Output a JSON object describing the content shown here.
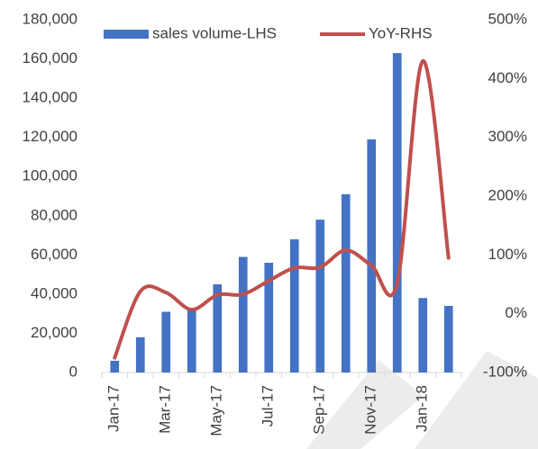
{
  "chart_data": {
    "type": "bar_line",
    "categories": [
      "Jan-17",
      null,
      "Mar-17",
      null,
      "May-17",
      null,
      "Jul-17",
      null,
      "Sep-17",
      null,
      "Nov-17",
      null,
      "Jan-18",
      null
    ],
    "series": [
      {
        "name": "sales volume-LHS",
        "type": "bar",
        "color": "#4472c4",
        "values": [
          6000,
          18000,
          31000,
          32000,
          45000,
          59000,
          56000,
          68000,
          78000,
          91000,
          119000,
          163000,
          38000,
          34000
        ]
      },
      {
        "name": "YoY-RHS",
        "type": "line",
        "axis": "y2",
        "color": "#c0504d",
        "values": [
          -75,
          38,
          36,
          7,
          32,
          33,
          56,
          78,
          79,
          108,
          82,
          52,
          430,
          95
        ]
      }
    ],
    "ylim": [
      0,
      180000
    ],
    "yticks": [
      0,
      {
        "value": 20000,
        "label": "20,000"
      },
      {
        "value": 40000,
        "label": "40,000"
      },
      {
        "value": 60000,
        "label": "60,000"
      },
      {
        "value": 80000,
        "label": "80,000"
      },
      {
        "value": 100000,
        "label": "100,000"
      },
      {
        "value": 120000,
        "label": "120,000"
      },
      {
        "value": 140000,
        "label": "140,000"
      },
      {
        "value": 160000,
        "label": "160,000"
      },
      {
        "value": 180000,
        "label": "180,000"
      }
    ],
    "y2lim": [
      -100,
      500
    ],
    "y2ticks": [
      {
        "value": -100,
        "label": "-100%"
      },
      {
        "value": 0,
        "label": "0%"
      },
      {
        "value": 100,
        "label": "100%"
      },
      {
        "value": 200,
        "label": "200%"
      },
      {
        "value": 300,
        "label": "300%"
      },
      {
        "value": 400,
        "label": "400%"
      },
      {
        "value": 500,
        "label": "500%"
      }
    ],
    "legend": "top"
  }
}
